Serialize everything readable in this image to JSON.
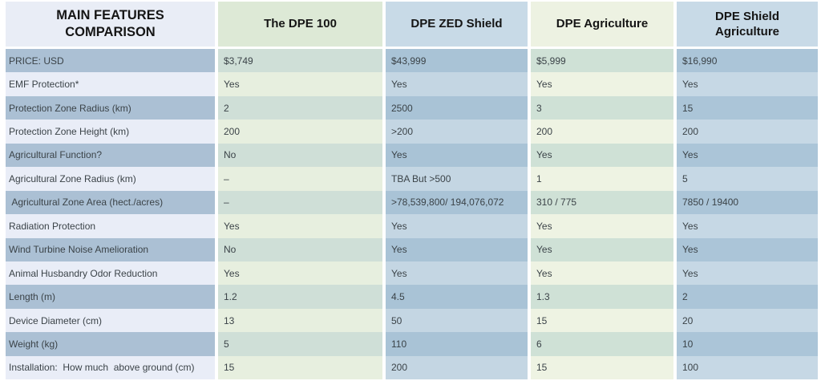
{
  "table": {
    "header": {
      "feature_col": "MAIN FEATURES COMPARISON",
      "products": [
        "The DPE 100",
        "DPE ZED Shield",
        "DPE Agriculture",
        "DPE Shield Agriculture"
      ]
    },
    "rows": [
      {
        "label": "PRICE: USD",
        "values": [
          "$3,749",
          "$43,999",
          "$5,999",
          "$16,990"
        ]
      },
      {
        "label": "EMF Protection*",
        "values": [
          "Yes",
          "Yes",
          "Yes",
          "Yes"
        ]
      },
      {
        "label": "Protection Zone Radius (km)",
        "values": [
          "2",
          "2500",
          "3",
          "15"
        ]
      },
      {
        "label": "Protection Zone Height (km)",
        "values": [
          "200",
          ">200",
          "200",
          "200"
        ]
      },
      {
        "label": "Agricultural Function?",
        "values": [
          "No",
          "Yes",
          "Yes",
          "Yes"
        ]
      },
      {
        "label": "Agricultural Zone Radius (km)",
        "values": [
          "–",
          "TBA But >500",
          "1",
          "5"
        ]
      },
      {
        "label": " Agricultural Zone Area (hect./acres)",
        "values": [
          "–",
          ">78,539,800/ 194,076,072",
          "310 / 775",
          "7850 / 19400"
        ]
      },
      {
        "label": "Radiation Protection",
        "values": [
          "Yes",
          "Yes",
          "Yes",
          "Yes"
        ]
      },
      {
        "label": "Wind Turbine Noise Amelioration",
        "values": [
          "No",
          "Yes",
          "Yes",
          "Yes"
        ]
      },
      {
        "label": "Animal Husbandry Odor Reduction",
        "values": [
          "Yes",
          "Yes",
          "Yes",
          "Yes"
        ]
      },
      {
        "label": "Length (m)",
        "values": [
          "1.2",
          "4.5",
          "1.3",
          "2"
        ]
      },
      {
        "label": "Device Diameter (cm)",
        "values": [
          "13",
          "50",
          "15",
          "20"
        ]
      },
      {
        "label": "Weight (kg)",
        "values": [
          "5",
          "110",
          "6",
          "10"
        ]
      },
      {
        "label": "Installation:  How much  above ground (cm)",
        "values": [
          "15",
          "200",
          "15",
          "100"
        ]
      }
    ]
  },
  "colors": {
    "page_background": "#ffffff",
    "header_feature_bg": "#e9edf6",
    "header_col_green_bg": "#dde9d6",
    "header_col_blue_bg": "#c8dae7",
    "header_col_pale_green_bg": "#edf2e2",
    "feature_row_dark": "#abc0d4",
    "feature_row_light": "#e9edf7",
    "green_col_dark": "#cfdfd7",
    "green_col_light": "#e7efdf",
    "blue_col_dark": "#a9c3d6",
    "blue_col_light": "#c4d6e3",
    "header_text": "#151515",
    "body_text": "#3b4348"
  },
  "chart_data": {
    "type": "table",
    "title": "MAIN FEATURES COMPARISON",
    "columns": [
      "MAIN FEATURES COMPARISON",
      "The DPE 100",
      "DPE ZED Shield",
      "DPE Agriculture",
      "DPE Shield Agriculture"
    ],
    "rows": [
      [
        "PRICE: USD",
        "$3,749",
        "$43,999",
        "$5,999",
        "$16,990"
      ],
      [
        "EMF Protection*",
        "Yes",
        "Yes",
        "Yes",
        "Yes"
      ],
      [
        "Protection Zone Radius (km)",
        "2",
        "2500",
        "3",
        "15"
      ],
      [
        "Protection Zone Height (km)",
        "200",
        ">200",
        "200",
        "200"
      ],
      [
        "Agricultural Function?",
        "No",
        "Yes",
        "Yes",
        "Yes"
      ],
      [
        "Agricultural Zone Radius (km)",
        "–",
        "TBA But >500",
        "1",
        "5"
      ],
      [
        "Agricultural Zone Area (hect./acres)",
        "–",
        ">78,539,800/ 194,076,072",
        "310 / 775",
        "7850 / 19400"
      ],
      [
        "Radiation Protection",
        "Yes",
        "Yes",
        "Yes",
        "Yes"
      ],
      [
        "Wind Turbine Noise Amelioration",
        "No",
        "Yes",
        "Yes",
        "Yes"
      ],
      [
        "Animal Husbandry Odor Reduction",
        "Yes",
        "Yes",
        "Yes",
        "Yes"
      ],
      [
        "Length (m)",
        "1.2",
        "4.5",
        "1.3",
        "2"
      ],
      [
        "Device Diameter (cm)",
        "13",
        "50",
        "15",
        "20"
      ],
      [
        "Weight (kg)",
        "5",
        "110",
        "6",
        "10"
      ],
      [
        "Installation: How much above ground (cm)",
        "15",
        "200",
        "15",
        "100"
      ]
    ]
  }
}
